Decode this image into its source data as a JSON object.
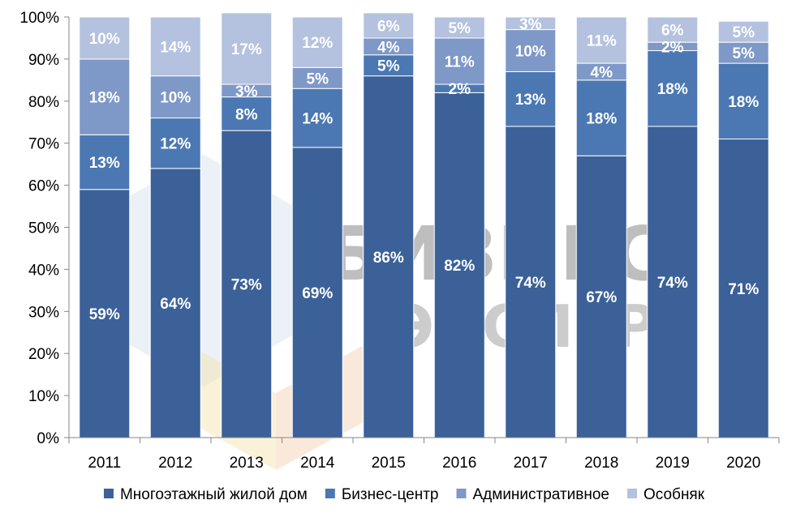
{
  "chart_data": {
    "type": "bar",
    "stacked": true,
    "percent": true,
    "categories": [
      "2011",
      "2012",
      "2013",
      "2014",
      "2015",
      "2016",
      "2017",
      "2018",
      "2019",
      "2020"
    ],
    "series": [
      {
        "name": "Многоэтажный жилой дом",
        "color": "#3b6198",
        "values": [
          59,
          64,
          73,
          69,
          86,
          82,
          74,
          67,
          74,
          71
        ],
        "labels": [
          "59%",
          "64%",
          "73%",
          "69%",
          "86%",
          "82%",
          "74%",
          "67%",
          "74%",
          "71%"
        ]
      },
      {
        "name": "Бизнес-центр",
        "color": "#4b78b2",
        "values": [
          13,
          12,
          8,
          14,
          5,
          2,
          13,
          18,
          18,
          18
        ],
        "labels": [
          "13%",
          "12%",
          "8%",
          "14%",
          "5%",
          "2%",
          "13%",
          "18%",
          "18%",
          "18%"
        ]
      },
      {
        "name": "Административное",
        "color": "#7e98c7",
        "values": [
          18,
          10,
          3,
          5,
          4,
          11,
          10,
          4,
          2,
          5
        ],
        "labels": [
          "18%",
          "10%",
          "3%",
          "5%",
          "4%",
          "11%",
          "10%",
          "4%",
          "2%",
          "5%"
        ]
      },
      {
        "name": "Особняк",
        "color": "#b4c2df",
        "values": [
          10,
          14,
          17,
          12,
          6,
          5,
          3,
          11,
          6,
          5
        ],
        "labels": [
          "10%",
          "14%",
          "17%",
          "12%",
          "6%",
          "5%",
          "3%",
          "11%",
          "6%",
          "5%"
        ]
      }
    ],
    "ylim": [
      0,
      100
    ],
    "yticks": [
      "0%",
      "10%",
      "20%",
      "30%",
      "40%",
      "50%",
      "60%",
      "70%",
      "80%",
      "90%",
      "100%"
    ],
    "grid": false,
    "legend": "bottom",
    "title": "",
    "xlabel": "",
    "ylabel": ""
  },
  "watermark": {
    "line1": "БИЗНЕС",
    "line2": "ЭКСПЕРТ"
  }
}
